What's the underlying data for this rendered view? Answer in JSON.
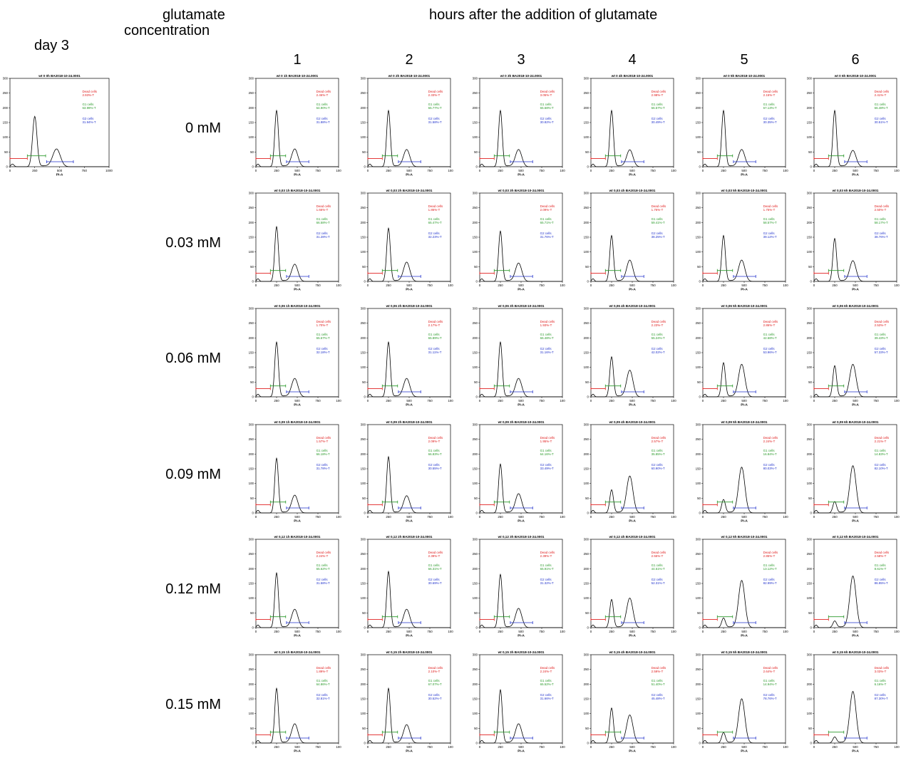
{
  "figure": {
    "day_label": "day 3",
    "conc_header": [
      "glutamate",
      "concentration"
    ],
    "hours_header": "hours after the addition of glutamate",
    "hours": [
      "1",
      "2",
      "3",
      "4",
      "5",
      "6"
    ],
    "concentrations": [
      "0 mM",
      "0.03 mM",
      "0.06 mM",
      "0.09 mM",
      "0.12 mM",
      "0.15 mM"
    ],
    "conc_codes": [
      "0",
      "0,03",
      "0,06",
      "0,09",
      "0,12",
      "0,15"
    ]
  },
  "colors": {
    "dead": "#e02020",
    "g1": "#2a9a2a",
    "g2": "#2233cc",
    "curve": "#000000"
  },
  "chart_data": {
    "type": "line",
    "series_kind": "PI-A histogram with gated percentages",
    "xlabel": "PI-A",
    "xlim": [
      0,
      1000
    ],
    "ylim": [
      0,
      300
    ],
    "yticks": [
      0,
      50,
      100,
      150,
      200,
      250,
      300
    ],
    "xticks_baseline": [
      "0",
      "250",
      "500",
      "750",
      "1000"
    ],
    "xticks_grid": [
      "0",
      "250",
      "500",
      "750",
      "100"
    ],
    "gate_labels": {
      "dead": "Dead cells",
      "g1": "G1 cells",
      "g2": "G2 cells"
    },
    "baseline": {
      "title": "wt 0 0h  BA2018-10-24.0001",
      "dead": "2.93%-T",
      "g1": "63.99%-T",
      "g2": "31.94%-T",
      "g1_peak": 170,
      "g2_peak": 60
    },
    "grid": [
      [
        {
          "title": "wt 0 1h  BA2018-10-24.0001",
          "dead": "2.46%-T",
          "g1": "64.90%-T",
          "g2": "31.88%-T",
          "g1_peak": 190,
          "g2_peak": 60
        },
        {
          "title": "wt 0 2h  BA2018-10-24.0001",
          "dead": "2.33%-T",
          "g1": "65.77%-T",
          "g2": "31.58%-T",
          "g1_peak": 190,
          "g2_peak": 58
        },
        {
          "title": "wt 0 3h  BA2018-10-24.0001",
          "dead": "3.05%-T",
          "g1": "65.68%-T",
          "g2": "30.82%-T",
          "g1_peak": 190,
          "g2_peak": 58
        },
        {
          "title": "wt 0 4h  BA2018-10-24.0001",
          "dead": "2.98%-T",
          "g1": "66.57%-T",
          "g2": "30.49%-T",
          "g1_peak": 190,
          "g2_peak": 57
        },
        {
          "title": "wt 0 5h  BA2018-10-24.0001",
          "dead": "2.15%-T",
          "g1": "67.13%-T",
          "g2": "30.35%-T",
          "g1_peak": 190,
          "g2_peak": 58
        },
        {
          "title": "wt 0 6h  BA2018-10-24.0001",
          "dead": "2.41%-T",
          "g1": "66.48%-T",
          "g2": "30.51%-T",
          "g1_peak": 190,
          "g2_peak": 55
        }
      ],
      [
        {
          "title": "wt 0,03 1h  BA2018-10-24.0001",
          "dead": "1.66%-T",
          "g1": "66.58%-T",
          "g2": "31.28%-T",
          "g1_peak": 185,
          "g2_peak": 58
        },
        {
          "title": "wt 0,03 2h  BA2018-10-24.0001",
          "dead": "1.86%-T",
          "g1": "65.47%-T",
          "g2": "32.23%-T",
          "g1_peak": 180,
          "g2_peak": 65
        },
        {
          "title": "wt 0,03 3h  BA2018-10-24.0001",
          "dead": "2.09%-T",
          "g1": "65.71%-T",
          "g2": "31.76%-T",
          "g1_peak": 170,
          "g2_peak": 62
        },
        {
          "title": "wt 0,03 4h  BA2018-10-24.0001",
          "dead": "1.76%-T",
          "g1": "59.41%-T",
          "g2": "38.25%-T",
          "g1_peak": 155,
          "g2_peak": 72
        },
        {
          "title": "wt 0,03 5h  BA2018-10-24.0001",
          "dead": "1.75%-T",
          "g1": "58.57%-T",
          "g2": "39.12%-T",
          "g1_peak": 155,
          "g2_peak": 72
        },
        {
          "title": "wt 0,03 6h  BA2018-10-24.0001",
          "dead": "2.50%-T",
          "g1": "58.17%-T",
          "g2": "38.76%-T",
          "g1_peak": 145,
          "g2_peak": 70
        }
      ],
      [
        {
          "title": "wt 0,06 1h  BA2018-10-24.0001",
          "dead": "1.70%-T",
          "g1": "65.67%-T",
          "g2": "32.18%-T",
          "g1_peak": 185,
          "g2_peak": 62
        },
        {
          "title": "wt 0,06 2h  BA2018-10-24.0001",
          "dead": "2.17%-T",
          "g1": "65.89%-T",
          "g2": "31.11%-T",
          "g1_peak": 185,
          "g2_peak": 62
        },
        {
          "title": "wt 0,06 3h  BA2018-10-24.0001",
          "dead": "1.93%-T",
          "g1": "66.48%-T",
          "g2": "31.16%-T",
          "g1_peak": 185,
          "g2_peak": 62
        },
        {
          "title": "wt 0,06 4h  BA2018-10-24.0001",
          "dead": "2.23%-T",
          "g1": "55.24%-T",
          "g2": "42.02%-T",
          "g1_peak": 135,
          "g2_peak": 90
        },
        {
          "title": "wt 0,06 5h  BA2018-10-24.0001",
          "dead": "2.86%-T",
          "g1": "42.68%-T",
          "g2": "53.96%-T",
          "g1_peak": 115,
          "g2_peak": 110
        },
        {
          "title": "wt 0,06 6h  BA2018-10-24.0001",
          "dead": "2.53%-T",
          "g1": "39.43%-T",
          "g2": "57.33%-T",
          "g1_peak": 105,
          "g2_peak": 110
        }
      ],
      [
        {
          "title": "wt 0,09 1h  BA2018-10-24.0001",
          "dead": "1.57%-T",
          "g1": "66.18%-T",
          "g2": "31.78%-T",
          "g1_peak": 185,
          "g2_peak": 60
        },
        {
          "title": "wt 0,09 2h  BA2018-10-24.0001",
          "dead": "2.09%-T",
          "g1": "66.83%-T",
          "g2": "30.55%-T",
          "g1_peak": 190,
          "g2_peak": 58
        },
        {
          "title": "wt 0,09 3h  BA2018-10-24.0001",
          "dead": "1.95%-T",
          "g1": "64.16%-T",
          "g2": "33.49%-T",
          "g1_peak": 165,
          "g2_peak": 65
        },
        {
          "title": "wt 0,09 4h  BA2018-10-24.0001",
          "dead": "2.57%-T",
          "g1": "35.85%-T",
          "g2": "60.90%-T",
          "g1_peak": 78,
          "g2_peak": 125
        },
        {
          "title": "wt 0,09 5h  BA2018-10-24.0001",
          "dead": "2.24%-T",
          "g1": "16.84%-T",
          "g2": "80.03%-T",
          "g1_peak": 45,
          "g2_peak": 155
        },
        {
          "title": "wt 0,09 6h  BA2018-10-24.0001",
          "dead": "2.21%-T",
          "g1": "14.83%-T",
          "g2": "82.10%-T",
          "g1_peak": 38,
          "g2_peak": 160
        }
      ],
      [
        {
          "title": "wt 0,12 1h  BA2018-10-24.0001",
          "dead": "2.24%-T",
          "g1": "65.62%-T",
          "g2": "31.58%-T",
          "g1_peak": 185,
          "g2_peak": 62
        },
        {
          "title": "wt 0,12 2h  BA2018-10-24.0001",
          "dead": "2.39%-T",
          "g1": "66.31%-T",
          "g2": "30.69%-T",
          "g1_peak": 190,
          "g2_peak": 62
        },
        {
          "title": "wt 0,12 3h  BA2018-10-24.0001",
          "dead": "2.39%-T",
          "g1": "65.91%-T",
          "g2": "31.32%-T",
          "g1_peak": 180,
          "g2_peak": 65
        },
        {
          "title": "wt 0,12 4h  BA2018-10-24.0001",
          "dead": "2.55%-T",
          "g1": "44.61%-T",
          "g2": "52.31%-T",
          "g1_peak": 95,
          "g2_peak": 100
        },
        {
          "title": "wt 0,12 5h  BA2018-10-24.0001",
          "dead": "2.85%-T",
          "g1": "13.12%-T",
          "g2": "82.99%-T",
          "g1_peak": 32,
          "g2_peak": 160
        },
        {
          "title": "wt 0,12 6h  BA2018-10-24.0001",
          "dead": "2.58%-T",
          "g1": "8.61%-T",
          "g2": "86.95%-T",
          "g1_peak": 22,
          "g2_peak": 175
        }
      ],
      [
        {
          "title": "wt 0,15 1h  BA2018-10-24.0001",
          "dead": "1.89%-T",
          "g1": "64.86%-T",
          "g2": "32.81%-T",
          "g1_peak": 185,
          "g2_peak": 65
        },
        {
          "title": "wt 0,15 2h  BA2018-10-24.0001",
          "dead": "2.10%-T",
          "g1": "67.07%-T",
          "g2": "30.52%-T",
          "g1_peak": 185,
          "g2_peak": 62
        },
        {
          "title": "wt 0,15 3h  BA2018-10-24.0001",
          "dead": "2.24%-T",
          "g1": "65.52%-T",
          "g2": "31.66%-T",
          "g1_peak": 180,
          "g2_peak": 65
        },
        {
          "title": "wt 0,15 4h  BA2018-10-24.0001",
          "dead": "2.59%-T",
          "g1": "51.40%-T",
          "g2": "45.48%-T",
          "g1_peak": 118,
          "g2_peak": 95
        },
        {
          "title": "wt 0,15 5h  BA2018-10-24.0001",
          "dead": "2.64%-T",
          "g1": "14.94%-T",
          "g2": "78.76%-T",
          "g1_peak": 35,
          "g2_peak": 150
        },
        {
          "title": "wt 0,15 6h  BA2018-10-24.0001",
          "dead": "3.03%-T",
          "g1": "6.16%-T",
          "g2": "87.30%-T",
          "g1_peak": 20,
          "g2_peak": 175
        }
      ]
    ]
  }
}
